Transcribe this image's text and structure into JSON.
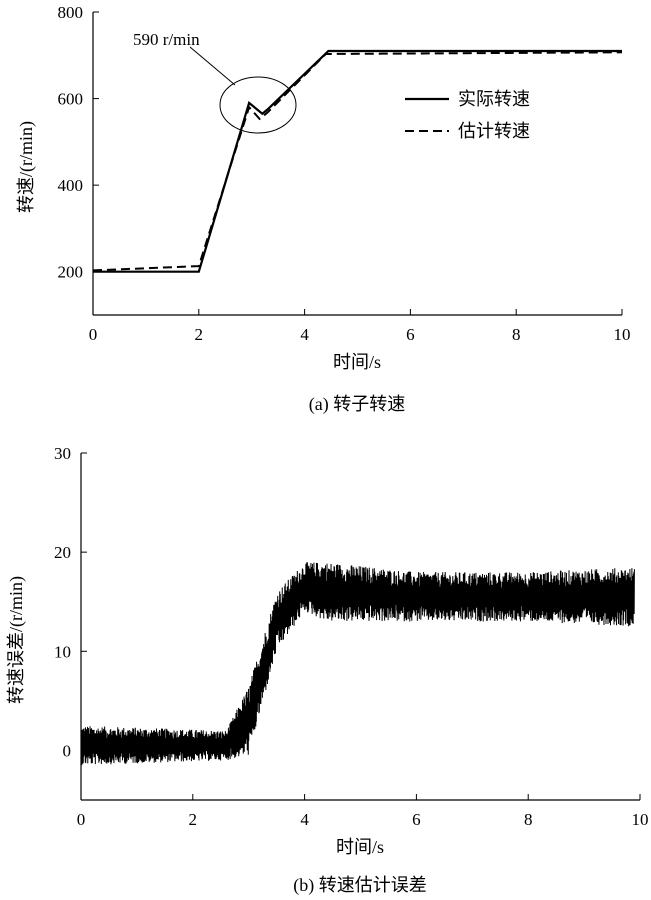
{
  "chart_data": [
    {
      "type": "line",
      "caption": "(a) 转子转速",
      "xlabel": "时间/s",
      "ylabel": "转速/(r/min)",
      "xlim": [
        0,
        10
      ],
      "ylim": [
        100,
        800
      ],
      "xticks": [
        0,
        2,
        4,
        6,
        8,
        10
      ],
      "yticks": [
        200,
        400,
        600,
        800
      ],
      "grid": false,
      "legend_position": "top-right",
      "annotation": {
        "text": "590 r/min",
        "x": 3.0,
        "y": 590
      },
      "series": [
        {
          "name": "实际转速",
          "style": "solid",
          "x": [
            0,
            2.0,
            2.95,
            3.2,
            3.3,
            4.45,
            10
          ],
          "y": [
            200,
            200,
            590,
            565,
            575,
            710,
            710
          ]
        },
        {
          "name": "估计转速",
          "style": "dashed",
          "x": [
            0,
            2.0,
            2.95,
            3.15,
            3.3,
            4.4,
            10
          ],
          "y": [
            203,
            213,
            580,
            553,
            568,
            703,
            707
          ]
        }
      ]
    },
    {
      "type": "line",
      "caption": "(b) 转速估计误差",
      "xlabel": "时间/s",
      "ylabel": "转速误差/(r/min)",
      "xlim": [
        0,
        10
      ],
      "ylim": [
        -5,
        30
      ],
      "xticks": [
        0,
        2,
        4,
        6,
        8,
        10
      ],
      "yticks": [
        0,
        10,
        20,
        30
      ],
      "grid": false,
      "series": [
        {
          "name": "",
          "style": "solid",
          "noise": "dense oscillation",
          "x": [
            0,
            2.6,
            3.0,
            3.5,
            4.0,
            4.4,
            6.0,
            8.0,
            9.9
          ],
          "center": [
            0.5,
            0.5,
            3.0,
            13.0,
            16.5,
            16.0,
            15.5,
            15.5,
            15.5
          ],
          "amplitude": [
            2.0,
            1.5,
            3.5,
            3.0,
            2.5,
            3.0,
            2.5,
            2.5,
            3.0
          ]
        }
      ]
    }
  ]
}
